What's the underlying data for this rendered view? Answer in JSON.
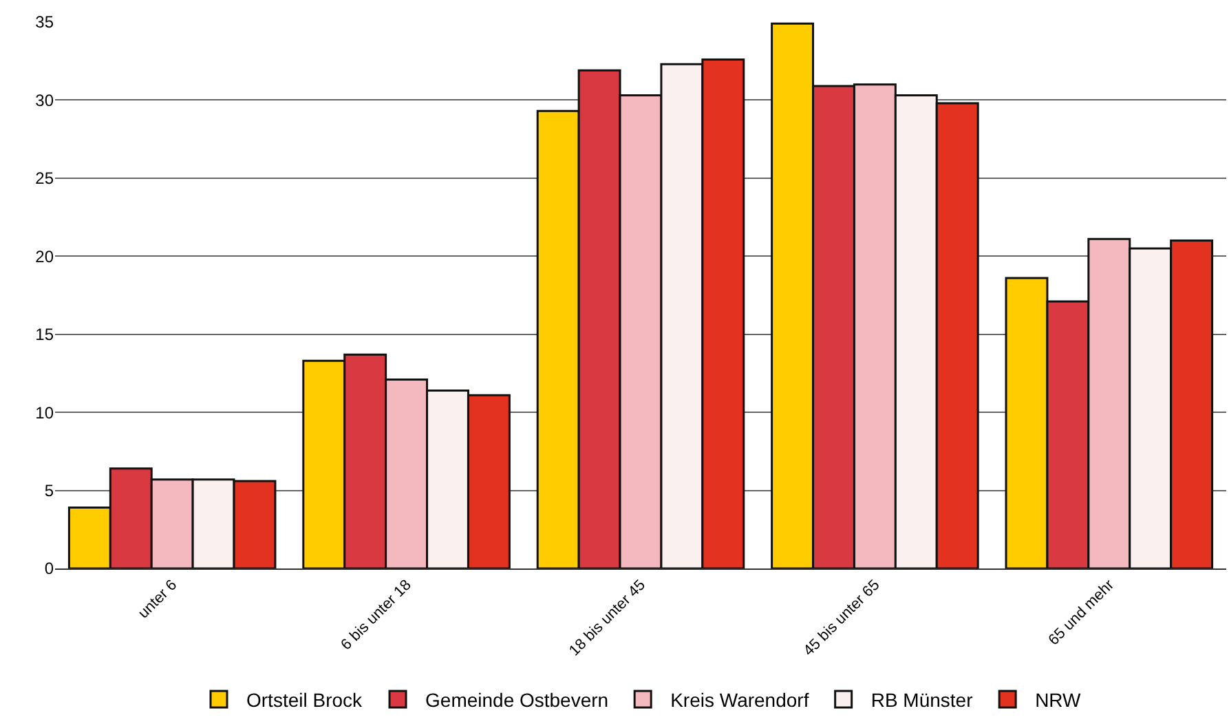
{
  "chart_data": {
    "type": "bar",
    "categories": [
      "unter 6",
      "6 bis unter 18",
      "18 bis unter 45",
      "45 bis unter 65",
      "65 und mehr"
    ],
    "series": [
      {
        "name": "Ortsteil Brock",
        "color": "#ffcc00",
        "values": [
          3.9,
          13.3,
          29.3,
          34.9,
          18.6
        ]
      },
      {
        "name": "Gemeinde Ostbevern",
        "color": "#d93a42",
        "values": [
          6.4,
          13.7,
          31.9,
          30.9,
          17.1
        ]
      },
      {
        "name": "Kreis Warendorf",
        "color": "#f4b8bf",
        "values": [
          5.7,
          12.1,
          30.3,
          31.0,
          21.1
        ]
      },
      {
        "name": "RB Münster",
        "color": "#fbf0f0",
        "values": [
          5.7,
          11.4,
          32.3,
          30.3,
          20.5
        ]
      },
      {
        "name": "NRW",
        "color": "#e3321f",
        "values": [
          5.6,
          11.1,
          32.6,
          29.8,
          21.0
        ]
      }
    ],
    "ylim": [
      0,
      35
    ],
    "yticks": [
      0,
      5,
      10,
      15,
      20,
      25,
      30,
      35
    ],
    "grid": "y",
    "legend": "bottom"
  }
}
